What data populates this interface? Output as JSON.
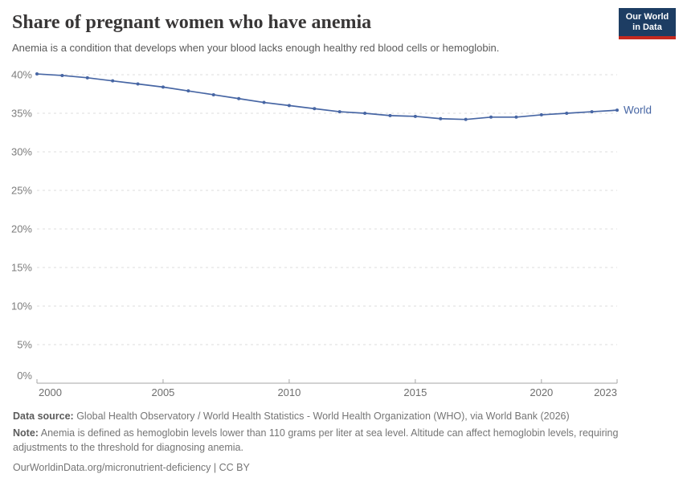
{
  "header": {
    "title": "Share of pregnant women who have anemia",
    "subtitle": "Anemia is a condition that develops when your blood lacks enough healthy red blood cells or hemoglobin.",
    "logo": {
      "line1": "Our World",
      "line2": "in Data",
      "bg_color": "#1d3d63",
      "accent_color": "#c5291f"
    }
  },
  "chart_data": {
    "type": "line",
    "title": "Share of pregnant women who have anemia",
    "xlabel": "",
    "ylabel": "",
    "x": [
      2000,
      2001,
      2002,
      2003,
      2004,
      2005,
      2006,
      2007,
      2008,
      2009,
      2010,
      2011,
      2012,
      2013,
      2014,
      2015,
      2016,
      2017,
      2018,
      2019,
      2020,
      2021,
      2022,
      2023
    ],
    "series": [
      {
        "name": "World",
        "color": "#4766a4",
        "values": [
          40.1,
          39.9,
          39.6,
          39.2,
          38.8,
          38.4,
          37.9,
          37.4,
          36.9,
          36.4,
          36.0,
          35.6,
          35.2,
          35.0,
          34.7,
          34.6,
          34.3,
          34.2,
          34.5,
          34.5,
          34.8,
          35.0,
          35.2,
          35.4
        ]
      }
    ],
    "xlim": [
      2000,
      2023
    ],
    "ylim": [
      0,
      40
    ],
    "grid": "horizontal-dashed",
    "legend_position": "line-end-label",
    "yticks": [
      {
        "value": 0,
        "label": "0%"
      },
      {
        "value": 5,
        "label": "5%"
      },
      {
        "value": 10,
        "label": "10%"
      },
      {
        "value": 15,
        "label": "15%"
      },
      {
        "value": 20,
        "label": "20%"
      },
      {
        "value": 25,
        "label": "25%"
      },
      {
        "value": 30,
        "label": "30%"
      },
      {
        "value": 35,
        "label": "35%"
      },
      {
        "value": 40,
        "label": "40%"
      }
    ],
    "xticks": [
      {
        "value": 2000,
        "label": "2000"
      },
      {
        "value": 2005,
        "label": "2005"
      },
      {
        "value": 2010,
        "label": "2010"
      },
      {
        "value": 2015,
        "label": "2015"
      },
      {
        "value": 2020,
        "label": "2020"
      },
      {
        "value": 2023,
        "label": "2023"
      }
    ]
  },
  "footer": {
    "datasource_label": "Data source:",
    "datasource_text": " Global Health Observatory / World Health Statistics - World Health Organization (WHO), via World Bank (2026)",
    "note_label": "Note:",
    "note_text": " Anemia is defined as hemoglobin levels lower than 110 grams per liter at sea level. Altitude can affect hemoglobin levels, requiring adjustments to the threshold for diagnosing anemia.",
    "url_text": "OurWorldinData.org/micronutrient-deficiency | CC BY"
  }
}
